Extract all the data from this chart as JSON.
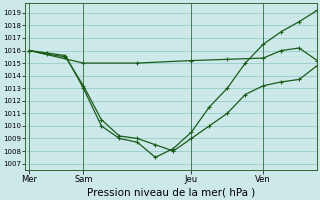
{
  "background_color": "#cce8e8",
  "grid_color": "#99cccc",
  "line_color": "#1a5c1a",
  "xlabel": "Pression niveau de la mer( hPa )",
  "xlabel_fontsize": 7.5,
  "ylim": [
    1006.5,
    1019.8
  ],
  "yticks": [
    1007,
    1008,
    1009,
    1010,
    1011,
    1012,
    1013,
    1014,
    1015,
    1016,
    1017,
    1018,
    1019
  ],
  "ytick_fontsize": 5.0,
  "day_labels": [
    "Mer",
    "Sam",
    "Jeu",
    "Ven"
  ],
  "day_positions": [
    0,
    6,
    18,
    26
  ],
  "xlim": [
    -0.5,
    32
  ],
  "vline_positions": [
    0,
    6,
    18,
    26
  ],
  "line1_x": [
    0,
    6,
    12,
    18,
    22,
    26,
    28,
    30,
    32
  ],
  "line1_y": [
    1016.0,
    1015.0,
    1015.0,
    1015.2,
    1015.3,
    1015.4,
    1016.0,
    1016.2,
    1015.2
  ],
  "line2_x": [
    0,
    2,
    4,
    6,
    8,
    10,
    12,
    14,
    16,
    18,
    20,
    22,
    24,
    26,
    28,
    30,
    32
  ],
  "line2_y": [
    1016.0,
    1015.7,
    1015.5,
    1013.2,
    1010.5,
    1009.2,
    1009.0,
    1008.5,
    1008.0,
    1009.0,
    1010.0,
    1011.0,
    1012.5,
    1013.2,
    1013.5,
    1013.7,
    1014.8
  ],
  "line3_x": [
    0,
    2,
    4,
    6,
    8,
    10,
    12,
    14,
    16,
    18,
    20,
    22,
    24,
    26,
    28,
    30,
    32
  ],
  "line3_y": [
    1016.0,
    1015.8,
    1015.6,
    1013.0,
    1010.0,
    1009.0,
    1008.7,
    1007.5,
    1008.2,
    1009.5,
    1011.5,
    1013.0,
    1015.0,
    1016.5,
    1017.5,
    1018.3,
    1019.2
  ]
}
